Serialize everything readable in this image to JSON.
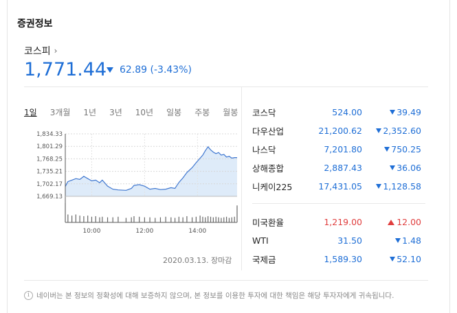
{
  "section_title": "증권정보",
  "main_index": {
    "name": "코스피",
    "value": "1,771.44",
    "change": "62.89 (-3.43%)",
    "direction": "down",
    "chevron_icon": "chevron-right-icon"
  },
  "tabs": [
    {
      "label": "1일",
      "active": true
    },
    {
      "label": "3개월",
      "active": false
    },
    {
      "label": "1년",
      "active": false
    },
    {
      "label": "3년",
      "active": false
    },
    {
      "label": "10년",
      "active": false
    },
    {
      "label": "일봉",
      "active": false
    },
    {
      "label": "주봉",
      "active": false
    },
    {
      "label": "월봉",
      "active": false
    }
  ],
  "chart_data": {
    "type": "area",
    "y_ticks": [
      "1,834.33",
      "1,801.29",
      "1,768.25",
      "1,735.21",
      "1,702.17",
      "1,669.13"
    ],
    "y_tick_values": [
      1834.33,
      1801.29,
      1768.25,
      1735.21,
      1702.17,
      1669.13
    ],
    "ylim": [
      1669.13,
      1834.33
    ],
    "x_ticks": [
      "10:00",
      "12:00",
      "14:00"
    ],
    "x_tick_hours": [
      10,
      12,
      14
    ],
    "xlim": [
      9,
      15.5
    ],
    "grid": true,
    "series": [
      {
        "points": [
          [
            9.0,
            1695
          ],
          [
            9.1,
            1708
          ],
          [
            9.25,
            1712
          ],
          [
            9.4,
            1716
          ],
          [
            9.55,
            1714
          ],
          [
            9.7,
            1722
          ],
          [
            9.85,
            1716
          ],
          [
            10.0,
            1710
          ],
          [
            10.15,
            1712
          ],
          [
            10.3,
            1705
          ],
          [
            10.4,
            1712
          ],
          [
            10.6,
            1696
          ],
          [
            10.8,
            1688
          ],
          [
            11.0,
            1686
          ],
          [
            11.3,
            1685
          ],
          [
            11.5,
            1690
          ],
          [
            11.6,
            1698
          ],
          [
            11.8,
            1700
          ],
          [
            12.0,
            1696
          ],
          [
            12.2,
            1688
          ],
          [
            12.4,
            1690
          ],
          [
            12.6,
            1687
          ],
          [
            12.8,
            1688
          ],
          [
            13.0,
            1692
          ],
          [
            13.15,
            1690
          ],
          [
            13.3,
            1706
          ],
          [
            13.45,
            1718
          ],
          [
            13.6,
            1732
          ],
          [
            13.8,
            1745
          ],
          [
            13.95,
            1758
          ],
          [
            14.1,
            1770
          ],
          [
            14.2,
            1778
          ],
          [
            14.3,
            1790
          ],
          [
            14.4,
            1800
          ],
          [
            14.5,
            1792
          ],
          [
            14.6,
            1786
          ],
          [
            14.7,
            1782
          ],
          [
            14.8,
            1785
          ],
          [
            14.9,
            1778
          ],
          [
            15.0,
            1780
          ],
          [
            15.1,
            1773
          ],
          [
            15.2,
            1775
          ],
          [
            15.3,
            1770
          ],
          [
            15.4,
            1771.44
          ],
          [
            15.5,
            1771.44
          ]
        ],
        "volume": [
          34,
          14,
          12,
          14,
          12,
          11,
          12,
          10,
          11,
          9,
          10,
          9,
          9,
          10,
          8,
          9,
          11,
          10,
          9,
          9,
          8,
          9,
          10,
          9,
          8,
          10,
          9,
          11,
          9,
          10,
          12,
          10,
          9,
          11,
          10,
          9,
          10,
          9,
          8,
          9,
          10,
          8,
          9,
          10,
          30
        ],
        "line_color": "#3f77d0",
        "fill_color": "#deebf9"
      }
    ]
  },
  "chart_date": "2020.03.13. 장마감",
  "stocks_group1": [
    {
      "name": "코스닥",
      "price": "524.00",
      "change": "39.49",
      "dir": "down"
    },
    {
      "name": "다우산업",
      "price": "21,200.62",
      "change": "2,352.60",
      "dir": "down"
    },
    {
      "name": "나스닥",
      "price": "7,201.80",
      "change": "750.25",
      "dir": "down"
    },
    {
      "name": "상해종합",
      "price": "2,887.43",
      "change": "36.06",
      "dir": "down"
    },
    {
      "name": "니케이225",
      "price": "17,431.05",
      "change": "1,128.58",
      "dir": "down"
    }
  ],
  "stocks_group2": [
    {
      "name": "미국환율",
      "price": "1,219.00",
      "change": "12.00",
      "dir": "up"
    },
    {
      "name": "WTI",
      "price": "31.50",
      "change": "1.48",
      "dir": "down"
    },
    {
      "name": "국제금",
      "price": "1,589.30",
      "change": "52.10",
      "dir": "down"
    }
  ],
  "notice": "네이버는 본 정보의 정확성에 대해 보증하지 않으며, 본 정보를 이용한 투자에 대한 책임은 해당 투자자에게 귀속됩니다.",
  "colors": {
    "down": "#1e6ed6",
    "up": "#e03e3e"
  }
}
